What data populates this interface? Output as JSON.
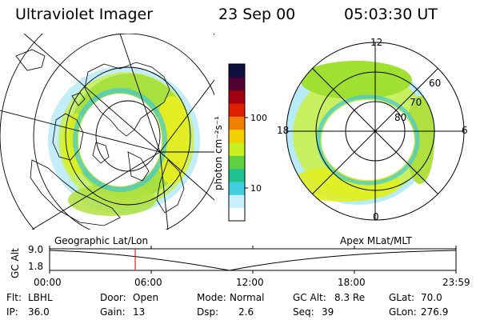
{
  "header": {
    "instrument": "Ultraviolet Imager",
    "date": "23 Sep 00",
    "time": "05:03:30 UT"
  },
  "colorbar": {
    "unit_label": "photon cm⁻²s⁻¹",
    "tick_labels": [
      "100",
      "10"
    ],
    "colors": [
      "#ffffff",
      "#c8f0ff",
      "#40d0e0",
      "#20c090",
      "#60d040",
      "#c8f020",
      "#f0d000",
      "#f08000",
      "#e02000",
      "#a00010",
      "#500030",
      "#101040"
    ]
  },
  "left_panel": {
    "label": "Geographic Lat/Lon"
  },
  "right_panel": {
    "label": "Apex MLat/MLT",
    "mlt_labels": [
      "12",
      "18",
      "6",
      "0"
    ],
    "lat_labels": [
      "60",
      "70",
      "80"
    ]
  },
  "altitude_plot": {
    "ylabel": "GC Alt",
    "ytick_labels": [
      "9.0",
      "1.8"
    ],
    "xtick_labels": [
      "00:00",
      "06:00",
      "12:00",
      "18:00",
      "23:59"
    ],
    "current_time_fraction": 0.2107,
    "cursor_color": "#e02020"
  },
  "info": {
    "flt_label": "Flt:",
    "flt_value": "LBHL",
    "ip_label": "IP:",
    "ip_value": "36.0",
    "door_label": "Door:",
    "door_value": "Open",
    "gain_label": "Gain:",
    "gain_value": "13",
    "mode_label": "Mode:",
    "mode_value": "Normal",
    "dsp_label": "Dsp:",
    "dsp_value": "2.6",
    "gcalt_label": "GC Alt:",
    "gcalt_value": "8.3 Re",
    "seq_label": "Seq:",
    "seq_value": "39",
    "glat_label": "GLat:",
    "glat_value": "70.0",
    "glon_label": "GLon:",
    "glon_value": "276.9"
  }
}
